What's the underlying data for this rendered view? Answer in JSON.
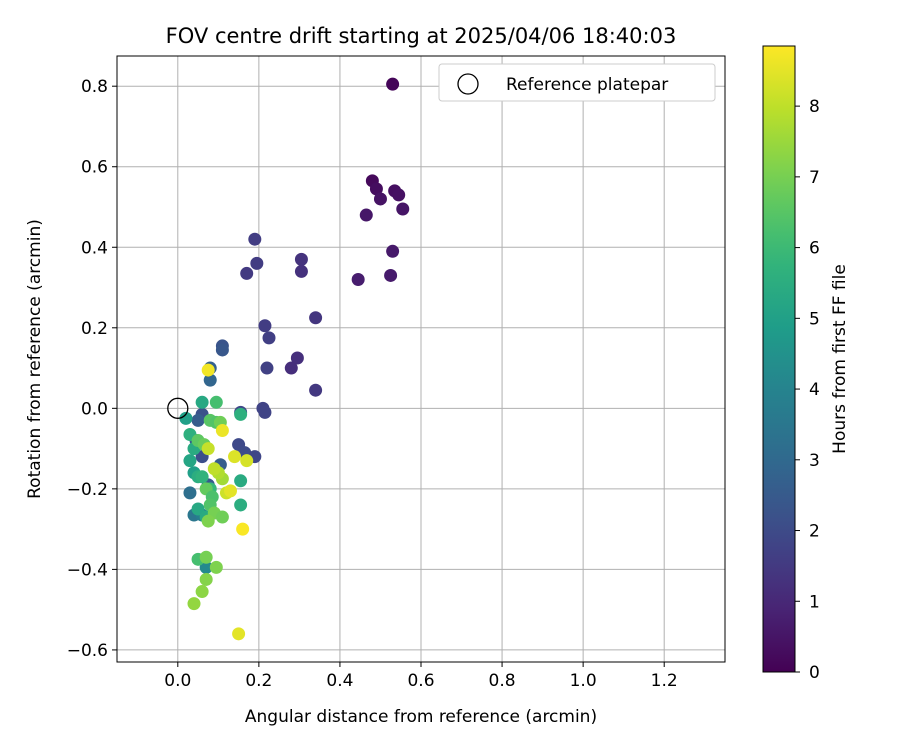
{
  "chart_data": {
    "type": "scatter",
    "title": "FOV centre drift starting at 2025/04/06 18:40:03",
    "xlabel": "Angular distance from reference (arcmin)",
    "ylabel": "Rotation from reference (arcmin)",
    "xlim": [
      -0.15,
      1.35
    ],
    "ylim": [
      -0.63,
      0.875
    ],
    "xticks": [
      0.0,
      0.2,
      0.4,
      0.6,
      0.8,
      1.0,
      1.2
    ],
    "xtick_labels": [
      "0.0",
      "0.2",
      "0.4",
      "0.6",
      "0.8",
      "1.0",
      "1.2"
    ],
    "yticks": [
      0.8,
      0.6,
      0.4,
      0.2,
      0.0,
      -0.2,
      -0.4,
      -0.6
    ],
    "ytick_labels": [
      "0.8",
      "0.6",
      "0.4",
      "0.2",
      "0.0",
      "−0.2",
      "−0.4",
      "−0.6"
    ],
    "grid": true,
    "legend": {
      "position": "top-right",
      "entries": [
        "Reference platepar"
      ]
    },
    "reference_point": {
      "x": 0.0,
      "y": 0.0
    },
    "colorbar": {
      "label": "Hours from first FF file",
      "colormap": "viridis",
      "range": [
        0,
        8.85
      ],
      "ticks": [
        0,
        1,
        2,
        3,
        4,
        5,
        6,
        7,
        8
      ],
      "tick_labels": [
        "0",
        "1",
        "2",
        "3",
        "4",
        "5",
        "6",
        "7",
        "8"
      ]
    },
    "points": [
      {
        "x": 0.53,
        "y": 0.805,
        "t": 0.1
      },
      {
        "x": 0.48,
        "y": 0.565,
        "t": 0.2
      },
      {
        "x": 0.49,
        "y": 0.545,
        "t": 0.3
      },
      {
        "x": 0.535,
        "y": 0.54,
        "t": 0.35
      },
      {
        "x": 0.545,
        "y": 0.53,
        "t": 0.4
      },
      {
        "x": 0.5,
        "y": 0.52,
        "t": 0.45
      },
      {
        "x": 0.555,
        "y": 0.495,
        "t": 0.5
      },
      {
        "x": 0.465,
        "y": 0.48,
        "t": 0.55
      },
      {
        "x": 0.53,
        "y": 0.39,
        "t": 0.6
      },
      {
        "x": 0.525,
        "y": 0.33,
        "t": 0.65
      },
      {
        "x": 0.445,
        "y": 0.32,
        "t": 0.7
      },
      {
        "x": 0.19,
        "y": 0.42,
        "t": 1.6
      },
      {
        "x": 0.195,
        "y": 0.36,
        "t": 1.55
      },
      {
        "x": 0.17,
        "y": 0.335,
        "t": 1.5
      },
      {
        "x": 0.305,
        "y": 0.37,
        "t": 1.3
      },
      {
        "x": 0.305,
        "y": 0.34,
        "t": 1.25
      },
      {
        "x": 0.34,
        "y": 0.225,
        "t": 1.4
      },
      {
        "x": 0.215,
        "y": 0.205,
        "t": 1.6
      },
      {
        "x": 0.225,
        "y": 0.175,
        "t": 1.65
      },
      {
        "x": 0.295,
        "y": 0.125,
        "t": 1.2
      },
      {
        "x": 0.22,
        "y": 0.1,
        "t": 1.7
      },
      {
        "x": 0.28,
        "y": 0.1,
        "t": 1.15
      },
      {
        "x": 0.34,
        "y": 0.045,
        "t": 1.45
      },
      {
        "x": 0.21,
        "y": 0.0,
        "t": 1.75
      },
      {
        "x": 0.215,
        "y": -0.01,
        "t": 1.8
      },
      {
        "x": 0.155,
        "y": -0.01,
        "t": 1.9
      },
      {
        "x": 0.15,
        "y": -0.09,
        "t": 1.95
      },
      {
        "x": 0.165,
        "y": -0.11,
        "t": 2.0
      },
      {
        "x": 0.19,
        "y": -0.12,
        "t": 1.85
      },
      {
        "x": 0.11,
        "y": 0.155,
        "t": 2.3
      },
      {
        "x": 0.11,
        "y": 0.145,
        "t": 2.4
      },
      {
        "x": 0.08,
        "y": 0.1,
        "t": 2.7
      },
      {
        "x": 0.08,
        "y": 0.07,
        "t": 2.9
      },
      {
        "x": 0.06,
        "y": -0.015,
        "t": 2.2
      },
      {
        "x": 0.05,
        "y": -0.03,
        "t": 2.6
      },
      {
        "x": 0.045,
        "y": -0.08,
        "t": 2.5
      },
      {
        "x": 0.06,
        "y": -0.12,
        "t": 2.1
      },
      {
        "x": 0.075,
        "y": -0.19,
        "t": 2.5
      },
      {
        "x": 0.105,
        "y": -0.14,
        "t": 2.6
      },
      {
        "x": 0.03,
        "y": -0.21,
        "t": 3.2
      },
      {
        "x": 0.04,
        "y": -0.265,
        "t": 3.5
      },
      {
        "x": 0.06,
        "y": -0.265,
        "t": 3.8
      },
      {
        "x": 0.07,
        "y": -0.395,
        "t": 4.2
      },
      {
        "x": 0.02,
        "y": -0.025,
        "t": 5.0
      },
      {
        "x": 0.06,
        "y": 0.015,
        "t": 5.3
      },
      {
        "x": 0.03,
        "y": -0.065,
        "t": 5.6
      },
      {
        "x": 0.04,
        "y": -0.1,
        "t": 5.4
      },
      {
        "x": 0.03,
        "y": -0.13,
        "t": 5.2
      },
      {
        "x": 0.04,
        "y": -0.16,
        "t": 5.0
      },
      {
        "x": 0.05,
        "y": -0.17,
        "t": 5.5
      },
      {
        "x": 0.06,
        "y": -0.17,
        "t": 5.7
      },
      {
        "x": 0.08,
        "y": -0.2,
        "t": 5.9
      },
      {
        "x": 0.05,
        "y": -0.25,
        "t": 5.3
      },
      {
        "x": 0.07,
        "y": -0.27,
        "t": 5.4
      },
      {
        "x": 0.155,
        "y": -0.015,
        "t": 5.6
      },
      {
        "x": 0.155,
        "y": -0.18,
        "t": 5.4
      },
      {
        "x": 0.155,
        "y": -0.24,
        "t": 5.5
      },
      {
        "x": 0.095,
        "y": 0.015,
        "t": 6.2
      },
      {
        "x": 0.08,
        "y": -0.03,
        "t": 6.5
      },
      {
        "x": 0.095,
        "y": -0.035,
        "t": 6.4
      },
      {
        "x": 0.105,
        "y": -0.035,
        "t": 6.9
      },
      {
        "x": 0.05,
        "y": -0.08,
        "t": 6.6
      },
      {
        "x": 0.065,
        "y": -0.09,
        "t": 6.8
      },
      {
        "x": 0.07,
        "y": -0.2,
        "t": 6.7
      },
      {
        "x": 0.085,
        "y": -0.22,
        "t": 6.3
      },
      {
        "x": 0.08,
        "y": -0.24,
        "t": 6.4
      },
      {
        "x": 0.09,
        "y": -0.26,
        "t": 7.0
      },
      {
        "x": 0.11,
        "y": -0.27,
        "t": 6.9
      },
      {
        "x": 0.075,
        "y": -0.28,
        "t": 7.1
      },
      {
        "x": 0.05,
        "y": -0.375,
        "t": 6.2
      },
      {
        "x": 0.07,
        "y": -0.37,
        "t": 7.0
      },
      {
        "x": 0.095,
        "y": -0.395,
        "t": 7.1
      },
      {
        "x": 0.07,
        "y": -0.425,
        "t": 7.2
      },
      {
        "x": 0.06,
        "y": -0.455,
        "t": 7.3
      },
      {
        "x": 0.04,
        "y": -0.485,
        "t": 7.4
      },
      {
        "x": 0.11,
        "y": -0.175,
        "t": 7.6
      },
      {
        "x": 0.1,
        "y": -0.16,
        "t": 7.8
      },
      {
        "x": 0.09,
        "y": -0.15,
        "t": 8.0
      },
      {
        "x": 0.075,
        "y": -0.1,
        "t": 8.1
      },
      {
        "x": 0.12,
        "y": -0.21,
        "t": 8.2
      },
      {
        "x": 0.13,
        "y": -0.205,
        "t": 8.5
      },
      {
        "x": 0.14,
        "y": -0.12,
        "t": 8.4
      },
      {
        "x": 0.17,
        "y": -0.13,
        "t": 8.3
      },
      {
        "x": 0.11,
        "y": -0.055,
        "t": 8.6
      },
      {
        "x": 0.075,
        "y": 0.095,
        "t": 8.7
      },
      {
        "x": 0.16,
        "y": -0.3,
        "t": 8.8
      },
      {
        "x": 0.15,
        "y": -0.56,
        "t": 8.5
      }
    ]
  }
}
